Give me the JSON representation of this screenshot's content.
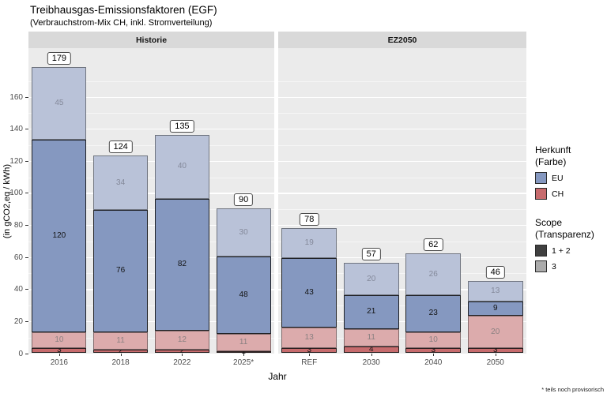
{
  "title": "Treibhausgas-Emissionsfaktoren (EGF)",
  "subtitle": "(Verbrauchstrom-Mix CH, inkl. Stromverteilung)",
  "footnote": "* teils noch provisorisch",
  "axes": {
    "y_title": "(in gCO2,eq / kWh)",
    "x_title": "Jahr",
    "y_ticks": [
      0,
      20,
      40,
      60,
      80,
      100,
      120,
      140,
      160
    ]
  },
  "legend": {
    "color_title": "Herkunft\n(Farbe)",
    "color_items": [
      {
        "label": "EU",
        "color": "#8598c0"
      },
      {
        "label": "CH",
        "color": "#c76b6d"
      }
    ],
    "alpha_title": "Scope\n(Transparenz)",
    "alpha_items": [
      {
        "label": "1 + 2",
        "color": "#404040"
      },
      {
        "label": "3",
        "color": "#ababab"
      }
    ]
  },
  "chart_data": {
    "type": "bar",
    "stacked": true,
    "title": "Treibhausgas-Emissionsfaktoren (EGF)",
    "subtitle": "(Verbrauchstrom-Mix CH, inkl. Stromverteilung)",
    "xlabel": "Jahr",
    "ylabel": "(in gCO2,eq / kWh)",
    "ylim": [
      0,
      190.5
    ],
    "y_ticks": [
      0,
      20,
      40,
      60,
      80,
      100,
      120,
      140,
      160
    ],
    "grid": true,
    "legend_position": "right",
    "stack_order": "bottom to top",
    "panels": [
      {
        "name": "Historie",
        "categories": [
          "2016",
          "2018",
          "2022",
          "2025*"
        ],
        "totals": [
          179,
          124,
          135,
          90
        ],
        "series": [
          {
            "name": "CH Scope 1+2",
            "values": [
              3,
              2,
              2,
              1
            ]
          },
          {
            "name": "CH Scope 3",
            "values": [
              10,
              11,
              12,
              11
            ]
          },
          {
            "name": "EU Scope 1+2",
            "values": [
              120,
              76,
              82,
              48
            ]
          },
          {
            "name": "EU Scope 3",
            "values": [
              45,
              34,
              40,
              30
            ]
          }
        ]
      },
      {
        "name": "EZ2050",
        "categories": [
          "REF",
          "2030",
          "2040",
          "2050"
        ],
        "totals": [
          78,
          57,
          62,
          46
        ],
        "series": [
          {
            "name": "CH Scope 1+2",
            "values": [
              3,
              4,
              3,
              3
            ]
          },
          {
            "name": "CH Scope 3",
            "values": [
              13,
              11,
              10,
              20
            ]
          },
          {
            "name": "EU Scope 1+2",
            "values": [
              43,
              21,
              23,
              9
            ]
          },
          {
            "name": "EU Scope 3",
            "values": [
              19,
              20,
              26,
              13
            ]
          }
        ]
      }
    ],
    "series_styles": {
      "CH Scope 1+2": {
        "fill": "#c76b6d",
        "border": "rgba(20,20,20,0.9)",
        "label_color": "#141414"
      },
      "CH Scope 3": {
        "fill": "#dcabac",
        "border": "rgba(40,40,40,0.5)",
        "label_color": "#8a8081"
      },
      "EU Scope 1+2": {
        "fill": "#8598c0",
        "border": "rgba(20,20,20,0.9)",
        "label_color": "#141414"
      },
      "EU Scope 3": {
        "fill": "#b9c2d8",
        "border": "rgba(40,40,40,0.5)",
        "label_color": "#84899a"
      }
    }
  }
}
